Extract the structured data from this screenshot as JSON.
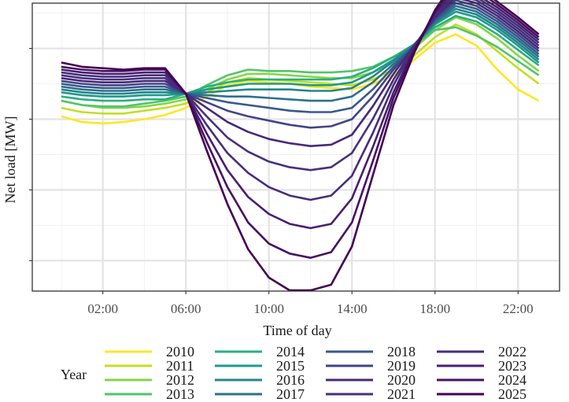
{
  "chart_data": {
    "type": "line",
    "xlabel": "Time of day",
    "ylabel": "Net load [MW]",
    "x_ticks": [
      2,
      6,
      10,
      14,
      18,
      22
    ],
    "x_tick_labels": [
      "02:00",
      "06:00",
      "10:00",
      "14:00",
      "18:00",
      "22:00"
    ],
    "xlim": [
      -1.4,
      24.0
    ],
    "ylim": [
      -0.215,
      1.82
    ],
    "y_ticks_shown_without_labels": true,
    "grid": true,
    "legend_title": "Year",
    "legend_position": "bottom",
    "x": [
      0,
      1,
      2,
      3,
      4,
      5,
      6,
      7,
      8,
      9,
      10,
      11,
      12,
      13,
      14,
      15,
      16,
      17,
      18,
      19,
      20,
      21,
      22,
      23
    ],
    "series": [
      {
        "name": "2010",
        "color": "#FDE725",
        "values": [
          1.02,
          0.98,
          0.97,
          0.98,
          1.0,
          1.03,
          1.08,
          1.16,
          1.24,
          1.27,
          1.26,
          1.25,
          1.23,
          1.22,
          1.21,
          1.25,
          1.31,
          1.42,
          1.54,
          1.6,
          1.52,
          1.35,
          1.21,
          1.13
        ]
      },
      {
        "name": "2011",
        "color": "#C2DF23",
        "values": [
          1.08,
          1.05,
          1.04,
          1.04,
          1.06,
          1.08,
          1.11,
          1.19,
          1.26,
          1.29,
          1.28,
          1.27,
          1.26,
          1.25,
          1.24,
          1.28,
          1.35,
          1.45,
          1.58,
          1.67,
          1.6,
          1.48,
          1.36,
          1.25
        ]
      },
      {
        "name": "2012",
        "color": "#86D549",
        "values": [
          1.13,
          1.1,
          1.08,
          1.08,
          1.09,
          1.11,
          1.14,
          1.21,
          1.28,
          1.32,
          1.32,
          1.31,
          1.3,
          1.29,
          1.29,
          1.33,
          1.4,
          1.5,
          1.63,
          1.72,
          1.67,
          1.57,
          1.45,
          1.34
        ]
      },
      {
        "name": "2013",
        "color": "#52C569",
        "values": [
          1.13,
          1.1,
          1.09,
          1.09,
          1.11,
          1.13,
          1.16,
          1.24,
          1.31,
          1.35,
          1.34,
          1.34,
          1.33,
          1.33,
          1.34,
          1.37,
          1.44,
          1.52,
          1.63,
          1.65,
          1.59,
          1.51,
          1.41,
          1.31
        ]
      },
      {
        "name": "2014",
        "color": "#2AB07F",
        "values": [
          1.16,
          1.14,
          1.13,
          1.13,
          1.14,
          1.14,
          1.18,
          1.23,
          1.26,
          1.28,
          1.28,
          1.28,
          1.28,
          1.28,
          1.3,
          1.36,
          1.44,
          1.53,
          1.65,
          1.73,
          1.69,
          1.6,
          1.49,
          1.38
        ]
      },
      {
        "name": "2015",
        "color": "#1E9B8A",
        "values": [
          1.19,
          1.17,
          1.16,
          1.16,
          1.17,
          1.17,
          1.18,
          1.21,
          1.23,
          1.25,
          1.25,
          1.25,
          1.24,
          1.24,
          1.26,
          1.33,
          1.42,
          1.53,
          1.67,
          1.76,
          1.72,
          1.63,
          1.52,
          1.4
        ]
      },
      {
        "name": "2016",
        "color": "#25858E",
        "values": [
          1.21,
          1.19,
          1.18,
          1.18,
          1.19,
          1.19,
          1.18,
          1.19,
          1.2,
          1.21,
          1.21,
          1.21,
          1.2,
          1.2,
          1.22,
          1.3,
          1.41,
          1.53,
          1.68,
          1.78,
          1.74,
          1.65,
          1.54,
          1.42
        ]
      },
      {
        "name": "2017",
        "color": "#2D708E",
        "values": [
          1.23,
          1.21,
          1.2,
          1.2,
          1.21,
          1.21,
          1.18,
          1.17,
          1.16,
          1.16,
          1.15,
          1.14,
          1.13,
          1.13,
          1.16,
          1.26,
          1.39,
          1.52,
          1.69,
          1.8,
          1.76,
          1.67,
          1.56,
          1.44
        ]
      },
      {
        "name": "2018",
        "color": "#38598C",
        "values": [
          1.25,
          1.23,
          1.22,
          1.22,
          1.23,
          1.23,
          1.18,
          1.15,
          1.12,
          1.1,
          1.08,
          1.06,
          1.05,
          1.05,
          1.08,
          1.21,
          1.37,
          1.52,
          1.7,
          1.82,
          1.78,
          1.69,
          1.58,
          1.46
        ]
      },
      {
        "name": "2019",
        "color": "#414487",
        "values": [
          1.27,
          1.25,
          1.24,
          1.24,
          1.25,
          1.25,
          1.18,
          1.12,
          1.06,
          1.02,
          0.99,
          0.96,
          0.94,
          0.95,
          1.0,
          1.16,
          1.35,
          1.52,
          1.71,
          1.84,
          1.8,
          1.71,
          1.6,
          1.48
        ]
      },
      {
        "name": "2020",
        "color": "#482878",
        "values": [
          1.29,
          1.27,
          1.26,
          1.26,
          1.27,
          1.27,
          1.18,
          1.08,
          0.98,
          0.91,
          0.86,
          0.83,
          0.81,
          0.82,
          0.89,
          1.09,
          1.32,
          1.52,
          1.72,
          1.86,
          1.82,
          1.73,
          1.62,
          1.5
        ]
      },
      {
        "name": "2021",
        "color": "#46307E",
        "values": [
          1.31,
          1.29,
          1.28,
          1.28,
          1.29,
          1.29,
          1.18,
          1.02,
          0.87,
          0.77,
          0.7,
          0.66,
          0.64,
          0.66,
          0.76,
          1.0,
          1.28,
          1.51,
          1.73,
          1.88,
          1.84,
          1.75,
          1.64,
          1.52
        ]
      },
      {
        "name": "2022",
        "color": "#472D7B",
        "values": [
          1.33,
          1.31,
          1.3,
          1.3,
          1.31,
          1.31,
          1.18,
          0.96,
          0.76,
          0.62,
          0.52,
          0.46,
          0.43,
          0.46,
          0.6,
          0.9,
          1.24,
          1.51,
          1.74,
          1.9,
          1.86,
          1.77,
          1.66,
          1.54
        ]
      },
      {
        "name": "2023",
        "color": "#481F70",
        "values": [
          1.35,
          1.33,
          1.32,
          1.32,
          1.33,
          1.33,
          1.18,
          0.9,
          0.64,
          0.45,
          0.33,
          0.26,
          0.23,
          0.26,
          0.44,
          0.8,
          1.19,
          1.5,
          1.75,
          1.93,
          1.88,
          1.79,
          1.68,
          1.56
        ]
      },
      {
        "name": "2024",
        "color": "#471163",
        "values": [
          1.37,
          1.35,
          1.34,
          1.34,
          1.35,
          1.35,
          1.18,
          0.84,
          0.52,
          0.27,
          0.12,
          0.05,
          0.02,
          0.06,
          0.27,
          0.7,
          1.15,
          1.49,
          1.76,
          1.96,
          1.91,
          1.81,
          1.7,
          1.58
        ]
      },
      {
        "name": "2025",
        "color": "#440154",
        "values": [
          1.4,
          1.37,
          1.36,
          1.35,
          1.36,
          1.36,
          1.18,
          0.78,
          0.4,
          0.08,
          -0.12,
          -0.21,
          -0.21,
          -0.17,
          0.1,
          0.6,
          1.1,
          1.47,
          1.77,
          1.99,
          1.94,
          1.83,
          1.72,
          1.6
        ]
      }
    ]
  }
}
